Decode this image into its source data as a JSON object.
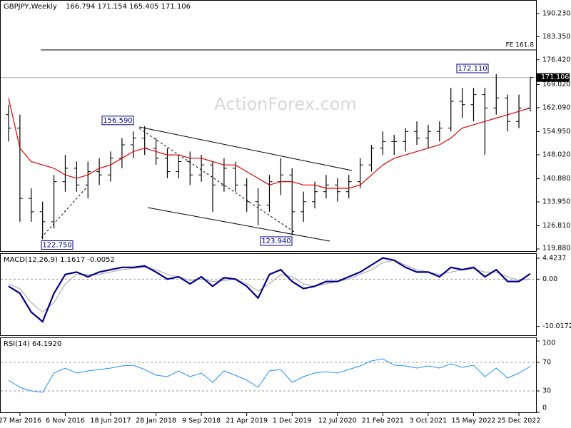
{
  "chart_data": {
    "type": "ohlc",
    "title": "GBPJPY,Weekly",
    "header_values": "166.794 171.154 165.405 171.106",
    "watermark": "ActionForex.com",
    "categories": [
      null,
      "27 Mar 2016",
      null,
      null,
      null,
      "6 Nov 2016",
      null,
      null,
      null,
      "18 Jun 2017",
      null,
      null,
      null,
      "28 Jan 2018",
      null,
      null,
      null,
      "9 Sep 2018",
      null,
      null,
      null,
      "21 Apr 2019",
      null,
      null,
      null,
      "1 Dec 2019",
      null,
      null,
      null,
      "12 Jul 2020",
      null,
      null,
      null,
      "21 Feb 2021",
      null,
      null,
      null,
      "3 Oct 2021",
      null,
      null,
      null,
      "15 May 2022",
      null,
      null,
      null,
      "25 Dec 2022",
      null
    ],
    "open": [
      160,
      156,
      135,
      131,
      128,
      140,
      144,
      139,
      143,
      142,
      147,
      151,
      153,
      150,
      147,
      143,
      146,
      142,
      145,
      139,
      144,
      139,
      134,
      133,
      140,
      142,
      131,
      134,
      137,
      139,
      137,
      140,
      145,
      150,
      152,
      152,
      155,
      153,
      155,
      156,
      164,
      163,
      166,
      162,
      165,
      158,
      162
    ],
    "high": [
      163,
      160,
      138,
      134,
      142,
      148,
      146,
      146,
      147,
      149,
      153,
      155,
      156.59,
      153,
      150,
      148,
      149,
      148,
      146,
      147,
      146,
      141,
      138,
      142,
      147,
      144,
      137,
      140,
      142,
      141,
      142,
      147,
      151,
      155,
      154,
      156,
      158,
      157,
      158,
      168,
      168,
      168,
      168,
      172.11,
      166,
      166,
      171.154
    ],
    "low": [
      152,
      128,
      128,
      122.75,
      126,
      137,
      137,
      135,
      139,
      140,
      144,
      147,
      148,
      145,
      141,
      141,
      139,
      140,
      131,
      137,
      137,
      131,
      127,
      131,
      136,
      123.94,
      128,
      132,
      135,
      134,
      135,
      138,
      143,
      148,
      148,
      149,
      151,
      150,
      152,
      155,
      159,
      158,
      148,
      160,
      155,
      156,
      161
    ],
    "close": [
      156,
      135,
      131,
      128,
      140,
      144,
      139,
      143,
      142,
      147,
      151,
      153,
      150,
      147,
      143,
      146,
      142,
      145,
      139,
      144,
      139,
      134,
      133,
      140,
      142,
      131,
      134,
      137,
      139,
      137,
      140,
      145,
      150,
      152,
      152,
      155,
      153,
      155,
      156,
      164,
      163,
      166,
      162,
      165,
      158,
      162,
      171.106
    ],
    "color": "#000000",
    "ma": {
      "color": "#e00000",
      "values": [
        165,
        150,
        146,
        145,
        144,
        142,
        141,
        142,
        144,
        145,
        147,
        149,
        150,
        149,
        148,
        148,
        147,
        147,
        146,
        145,
        145,
        143,
        141,
        139,
        140,
        140,
        139,
        139,
        138,
        138,
        138,
        139,
        142,
        145,
        147,
        148,
        149,
        150,
        151,
        153,
        156,
        157,
        158,
        159,
        160,
        161,
        162
      ]
    },
    "ylim": [
      119.03,
      194.28
    ],
    "yticks": [
      {
        "value": 190.23,
        "label": "190.230"
      },
      {
        "value": 183.35,
        "label": "183.350"
      },
      {
        "value": 176.42,
        "label": "176.420"
      },
      {
        "value": 169.02,
        "label": "169.020"
      },
      {
        "value": 162.09,
        "label": "162.090"
      },
      {
        "value": 154.95,
        "label": "154.950"
      },
      {
        "value": 148.02,
        "label": "148.020"
      },
      {
        "value": 140.88,
        "label": "140.880"
      },
      {
        "value": 133.95,
        "label": "133.950"
      },
      {
        "value": 126.81,
        "label": "126.810"
      },
      {
        "value": 119.88,
        "label": "119.880"
      }
    ],
    "levels": [
      {
        "value": 179.36,
        "label": "FE 161.8"
      }
    ],
    "annotations": [
      {
        "value": 122.75,
        "label": "122.750"
      },
      {
        "value": 156.59,
        "label": "156.590"
      },
      {
        "value": 123.94,
        "label": "123.940"
      },
      {
        "value": 172.11,
        "label": "172.110"
      }
    ],
    "macd": {
      "label": "MACD(12,26,9) 1.1617 -0.0052",
      "color": "#00008b",
      "signal_color": "#a0a0a0",
      "values": [
        -1.5,
        -3,
        -7,
        -9,
        -3,
        1,
        1.5,
        0.5,
        1.5,
        2,
        2.5,
        2.5,
        2.8,
        1.5,
        0,
        0.5,
        -1,
        0.5,
        -1.5,
        0.3,
        0,
        -1.5,
        -4,
        1,
        2,
        -0.5,
        -2,
        -1.5,
        -0.5,
        -0.5,
        0.5,
        1.5,
        3,
        4.5,
        4,
        2.5,
        1.5,
        1.5,
        0.5,
        2.5,
        2,
        2.5,
        0.5,
        2,
        -0.5,
        -0.5,
        1.1617
      ],
      "signal": [
        -1,
        -2,
        -5,
        -7,
        -5,
        -1,
        1,
        1,
        1,
        1.5,
        2,
        2.3,
        2.5,
        2,
        1,
        0.5,
        -0.3,
        0,
        -0.5,
        -0.3,
        0,
        -1,
        -2.5,
        -1,
        1,
        0.5,
        -1,
        -1.5,
        -1,
        -0.5,
        0,
        1,
        2,
        3.5,
        4,
        3,
        2,
        1.5,
        1,
        1.5,
        2,
        2.2,
        1.5,
        1.5,
        0.5,
        -0.3,
        -0.0052
      ],
      "ylim": [
        -12.04,
        5.49
      ],
      "yticks": [
        4.4237,
        {
          "value": 0,
          "label": "0.00"
        },
        -10.0172
      ]
    },
    "rsi": {
      "label": "RSI(14) 64.1920",
      "color": "#1e90ff",
      "values": [
        45,
        35,
        30,
        28,
        55,
        62,
        55,
        58,
        60,
        62,
        65,
        66,
        60,
        52,
        50,
        58,
        50,
        55,
        42,
        58,
        52,
        45,
        35,
        58,
        60,
        42,
        50,
        55,
        57,
        55,
        60,
        65,
        72,
        75,
        66,
        65,
        62,
        65,
        62,
        68,
        63,
        66,
        50,
        62,
        48,
        55,
        64.192
      ],
      "ylim": [
        -1,
        104
      ],
      "yticks": [
        100,
        70,
        30,
        0
      ]
    }
  }
}
